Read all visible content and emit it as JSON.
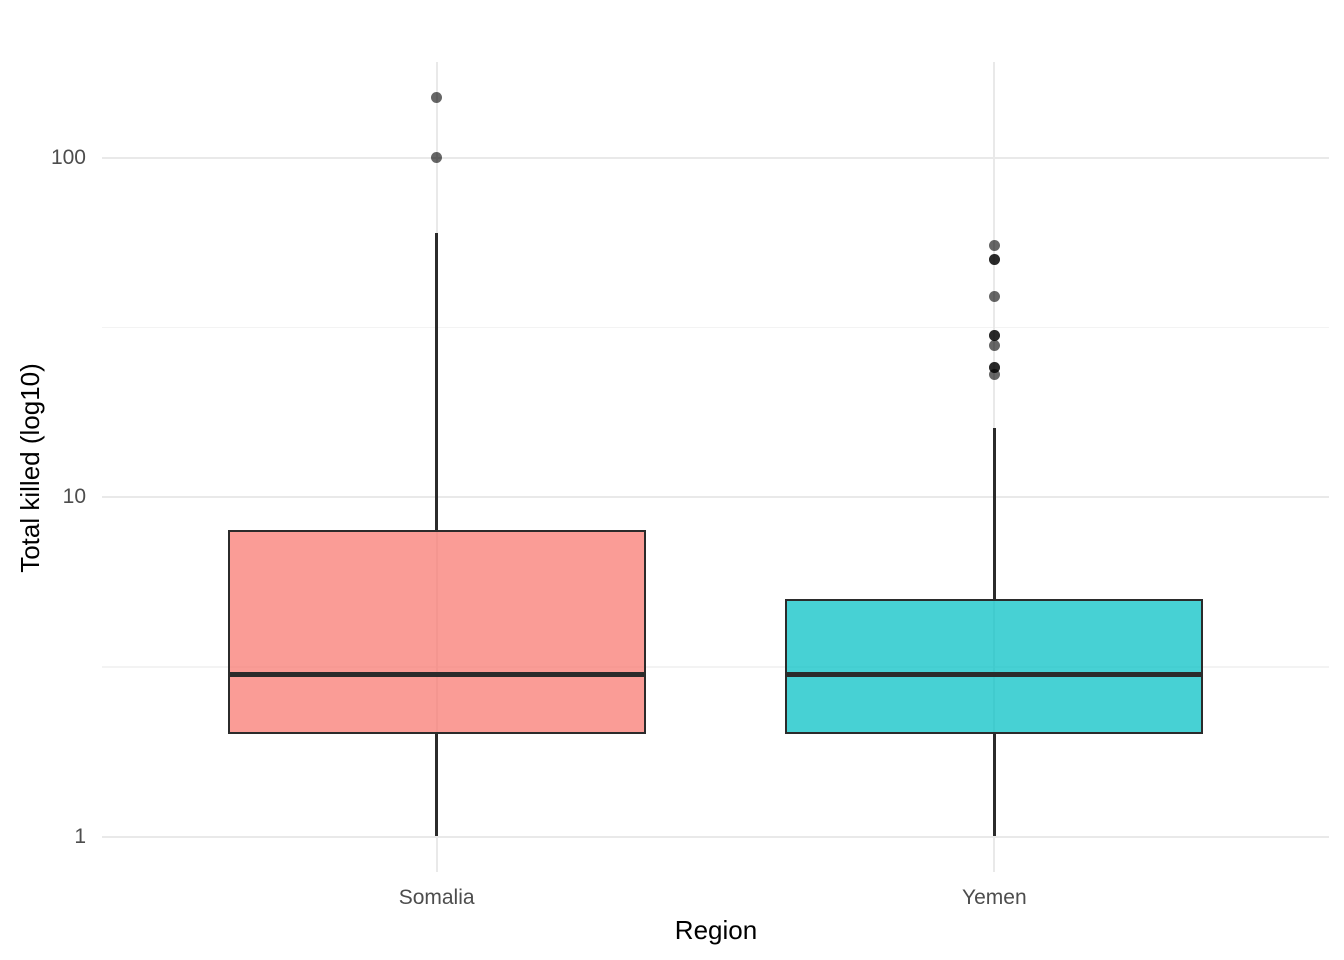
{
  "figure": {
    "background": "#FFFFFF"
  },
  "chart_data": {
    "type": "boxplot",
    "title": "",
    "xlabel": "Region",
    "ylabel": "Total killed (log10)",
    "y_scale": "log10",
    "y_ticks": [
      1,
      10,
      100
    ],
    "ylim": [
      0.79,
      190
    ],
    "grid": "major and minor horizontal, major vertical at categories",
    "legend": "none",
    "categories": [
      "Somalia",
      "Yemen"
    ],
    "series": [
      {
        "name": "Somalia",
        "fill": "#F8766D",
        "fill_alpha": 0.72,
        "stats": {
          "whisker_low": 1,
          "q1": 2,
          "median": 3,
          "q3": 8,
          "whisker_high": 60
        },
        "outliers": [
          150,
          100
        ]
      },
      {
        "name": "Yemen",
        "fill": "#00BFC4",
        "fill_alpha": 0.72,
        "stats": {
          "whisker_low": 1,
          "q1": 2,
          "median": 3,
          "q3": 5,
          "whisker_high": 16
        },
        "outliers": [
          55,
          50,
          50,
          39,
          30,
          30,
          28,
          24,
          24,
          23
        ]
      }
    ]
  },
  "style": {
    "line_color": "#2B2B2B",
    "grid_major_color": "#E9E9E9",
    "grid_minor_color": "#F3F3F3",
    "tick_text_color": "#4D4D4D",
    "title_text_color": "#000000",
    "outlier_color_rgba": "rgba(0,0,0,0.6)"
  }
}
